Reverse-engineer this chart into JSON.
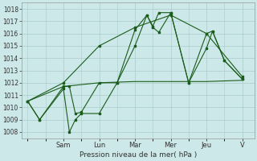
{
  "bg_color": "#cce8e8",
  "grid_color": "#aacccc",
  "line_color": "#1a5c1a",
  "xlabel": "Pression niveau de la mer( hPa )",
  "ylim": [
    1007.5,
    1018.5
  ],
  "yticks": [
    1008,
    1009,
    1010,
    1011,
    1012,
    1013,
    1014,
    1015,
    1016,
    1017,
    1018
  ],
  "day_labels": [
    "Sam",
    "Lun",
    "Mar",
    "Mer",
    "Jeu",
    "V"
  ],
  "day_positions": [
    24,
    48,
    72,
    96,
    120,
    144
  ],
  "xlim": [
    -4,
    152
  ],
  "line1_x": [
    0,
    8,
    24,
    28,
    32,
    36,
    48,
    60,
    72,
    80,
    84,
    88,
    96,
    108,
    120,
    124,
    132,
    144
  ],
  "line1_y": [
    1010.5,
    1009.0,
    1011.5,
    1008.0,
    1009.0,
    1009.5,
    1009.5,
    1012.0,
    1015.0,
    1017.5,
    1016.5,
    1016.1,
    1017.7,
    1012.0,
    1014.8,
    1016.2,
    1013.8,
    1012.3
  ],
  "line2_x": [
    0,
    8,
    24,
    28,
    32,
    36,
    48,
    60,
    72,
    80,
    84,
    88,
    96,
    108,
    120,
    124,
    132,
    144
  ],
  "line2_y": [
    1010.5,
    1009.0,
    1011.7,
    1011.7,
    1009.5,
    1009.6,
    1012.0,
    1012.0,
    1016.3,
    1017.5,
    1016.6,
    1017.7,
    1017.7,
    1012.0,
    1016.0,
    1016.2,
    1013.8,
    1012.3
  ],
  "line3_x": [
    0,
    24,
    48,
    72,
    96,
    120,
    144
  ],
  "line3_y": [
    1010.5,
    1011.7,
    1012.0,
    1012.1,
    1012.1,
    1012.1,
    1012.2
  ],
  "line4_x": [
    0,
    24,
    48,
    72,
    96,
    120,
    144
  ],
  "line4_y": [
    1010.5,
    1012.0,
    1015.0,
    1016.5,
    1017.5,
    1016.0,
    1012.5
  ]
}
